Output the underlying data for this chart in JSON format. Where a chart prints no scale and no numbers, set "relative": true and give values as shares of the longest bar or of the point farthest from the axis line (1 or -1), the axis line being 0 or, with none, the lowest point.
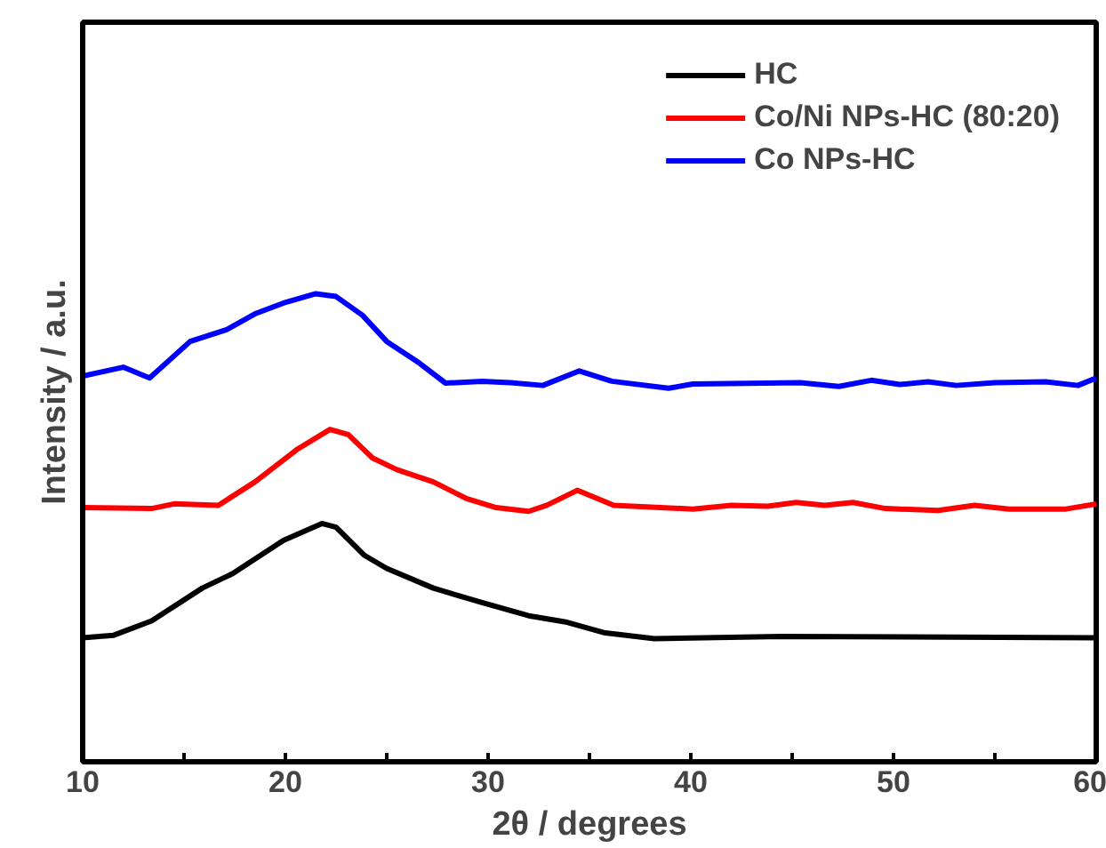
{
  "chart_data": {
    "type": "line",
    "relative": true,
    "xlabel": "2θ / degrees",
    "ylabel": "Intensity / a.u.",
    "xlim": [
      10,
      60
    ],
    "xticks": [
      10,
      {
        "value": 15,
        "label": null
      },
      20,
      {
        "value": 25,
        "label": null
      },
      30,
      {
        "value": 35,
        "label": null
      },
      40,
      {
        "value": 45,
        "label": null
      },
      50,
      {
        "value": 55,
        "label": null
      },
      60
    ],
    "tick_labels": "x",
    "grid": false,
    "legend": "top right",
    "marker": "none",
    "line_style": "solid",
    "series": [
      {
        "name": "HC",
        "color": "#000000",
        "x": [
          10,
          11.5,
          13.4,
          15.9,
          17.4,
          19.9,
          21.8,
          22.5,
          23.9,
          25.0,
          27.3,
          29.7,
          32.0,
          33.9,
          35.7,
          38.2,
          44.5,
          60
        ],
        "values": [
          0.265,
          0.27,
          0.301,
          0.371,
          0.402,
          0.473,
          0.509,
          0.501,
          0.441,
          0.413,
          0.371,
          0.34,
          0.312,
          0.298,
          0.276,
          0.263,
          0.268,
          0.265
        ]
      },
      {
        "name": "Co/Ni NPs-HC (80:20)",
        "color": "#ff0000",
        "x": [
          10,
          13.4,
          14.5,
          16.7,
          18.5,
          20.6,
          22.2,
          23.1,
          24.3,
          25.5,
          27.3,
          28.9,
          30.4,
          32.0,
          32.9,
          34.4,
          36.2,
          40.1,
          42.0,
          43.8,
          45.2,
          46.6,
          48.0,
          49.6,
          52.2,
          54.0,
          55.7,
          58.5,
          60
        ],
        "values": [
          0.543,
          0.541,
          0.551,
          0.548,
          0.598,
          0.668,
          0.71,
          0.699,
          0.649,
          0.624,
          0.598,
          0.563,
          0.543,
          0.535,
          0.548,
          0.58,
          0.548,
          0.54,
          0.548,
          0.546,
          0.554,
          0.548,
          0.554,
          0.541,
          0.537,
          0.548,
          0.54,
          0.54,
          0.551
        ]
      },
      {
        "name": "Co NPs-HC",
        "color": "#0000ff",
        "x": [
          10,
          12.0,
          13.3,
          15.3,
          17.1,
          18.5,
          19.9,
          21.5,
          22.5,
          23.8,
          25.0,
          26.6,
          27.9,
          29.7,
          31.1,
          32.7,
          34.5,
          36.1,
          38.9,
          40.1,
          45.4,
          47.3,
          48.9,
          50.3,
          51.7,
          53.1,
          55.0,
          57.5,
          59.1,
          60
        ],
        "values": [
          0.824,
          0.843,
          0.82,
          0.898,
          0.923,
          0.957,
          0.98,
          1.0,
          0.994,
          0.954,
          0.898,
          0.852,
          0.809,
          0.813,
          0.81,
          0.804,
          0.835,
          0.813,
          0.798,
          0.807,
          0.81,
          0.802,
          0.815,
          0.806,
          0.812,
          0.804,
          0.81,
          0.812,
          0.804,
          0.82
        ]
      }
    ]
  }
}
